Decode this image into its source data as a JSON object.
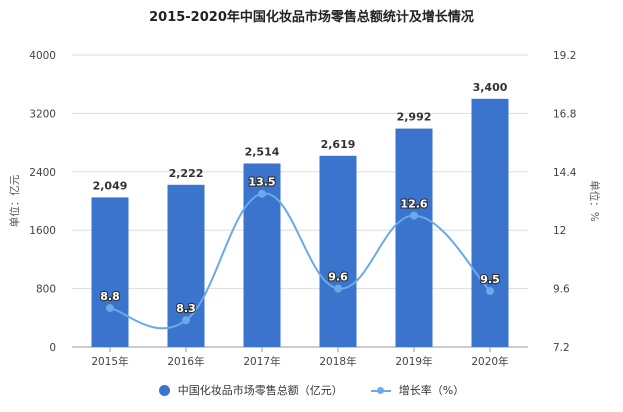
{
  "title": "2015-2020年中国化妆品市场零售总额统计及增长情况",
  "colors": {
    "bar": "#3a74cc",
    "line": "#6aaae8",
    "grid": "#dddddd"
  },
  "legend": {
    "bar_label": "中国化妆品市场零售总额（亿元）",
    "line_label": "增长率（%）"
  },
  "chart_data": {
    "type": "bar+line",
    "title": "2015-2020年中国化妆品市场零售总额统计及增长情况",
    "categories": [
      "2015年",
      "2016年",
      "2017年",
      "2018年",
      "2019年",
      "2020年"
    ],
    "series": [
      {
        "name": "中国化妆品市场零售总额（亿元）",
        "type": "bar",
        "axis": "left",
        "values": [
          2049,
          2222,
          2514,
          2619,
          2992,
          3400
        ],
        "labels": [
          "2,049",
          "2,222",
          "2,514",
          "2,619",
          "2,992",
          "3,400"
        ]
      },
      {
        "name": "增长率（%）",
        "type": "line",
        "axis": "right",
        "values": [
          8.8,
          8.3,
          13.5,
          9.6,
          12.6,
          9.5
        ],
        "labels": [
          "8.8",
          "8.3",
          "13.5",
          "9.6",
          "12.6",
          "9.5"
        ]
      }
    ],
    "ylabel": "单位：亿元",
    "y2label": "单位：%",
    "ylim": [
      0,
      4000
    ],
    "y2lim": [
      7.2,
      19.2
    ],
    "yticks": [
      "0",
      "800",
      "1600",
      "2400",
      "3200",
      "4000"
    ],
    "y2ticks": [
      "7.2",
      "9.6",
      "12",
      "14.4",
      "16.8",
      "19.2"
    ],
    "grid": true,
    "legend_position": "bottom"
  }
}
